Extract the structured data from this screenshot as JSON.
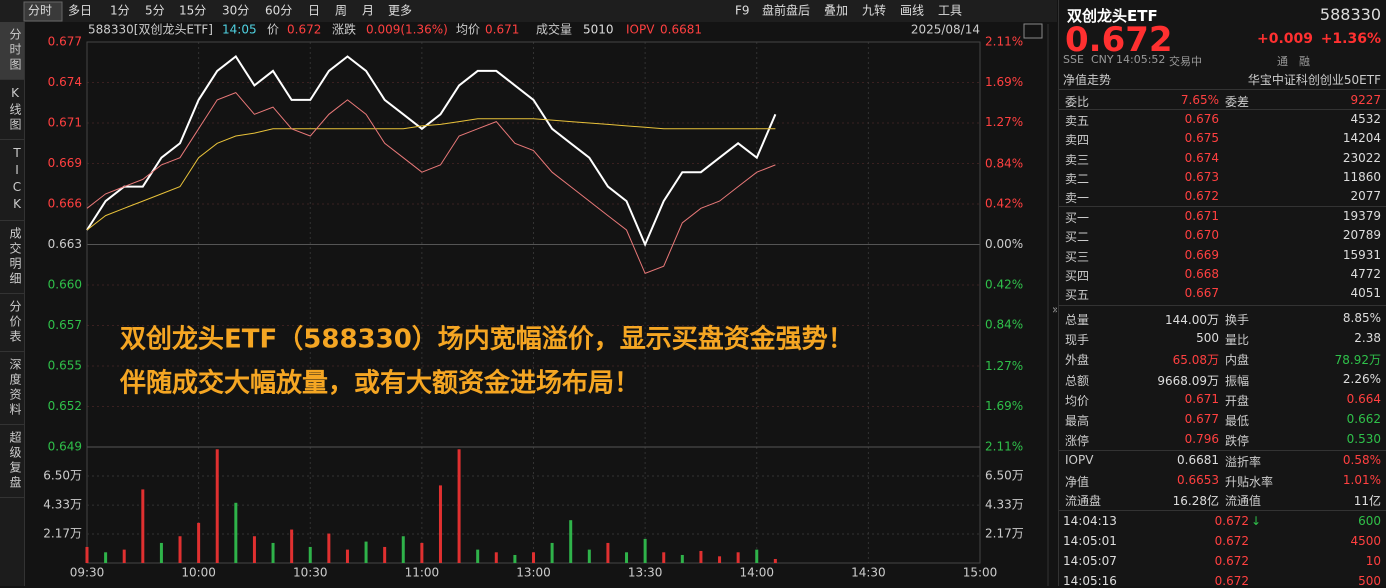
{
  "toolbar": {
    "tabs": [
      "分时",
      "多日",
      "1分",
      "5分",
      "15分",
      "30分",
      "60分",
      "日",
      "周",
      "月",
      "更多"
    ],
    "tools": [
      "F9",
      "盘前盘后",
      "叠加",
      "九转",
      "画线",
      "工具"
    ]
  },
  "side_tabs": [
    "分时图",
    "K线图",
    "TICK",
    "成交明细",
    "分价表",
    "深度资料",
    "超级复盘"
  ],
  "header": {
    "code_name": "588330[双创龙头ETF]",
    "time": "14:05",
    "price_label": "价",
    "price": "0.672",
    "change_label": "涨跌",
    "change": "0.009(1.36%)",
    "avg_label": "均价",
    "avg": "0.671",
    "volume_label": "成交量",
    "volume": "5010",
    "iopv_label": "IOPV",
    "iopv": "0.6681",
    "date": "2025/08/14"
  },
  "annotation": [
    "双创龙头ETF（588330）场内宽幅溢价，显示买盘资金强势！",
    "伴随成交大幅放量，或有大额资金进场布局！"
  ],
  "chart_data": [
    {
      "type": "line",
      "x": [
        "09:30",
        "09:35",
        "09:40",
        "09:45",
        "09:50",
        "09:55",
        "10:00",
        "10:05",
        "10:10",
        "10:15",
        "10:20",
        "10:25",
        "10:30",
        "10:35",
        "10:40",
        "10:45",
        "10:50",
        "10:55",
        "11:00",
        "11:05",
        "11:10",
        "11:15",
        "11:20",
        "11:25",
        "13:00",
        "13:05",
        "13:10",
        "13:15",
        "13:20",
        "13:25",
        "13:30",
        "13:35",
        "13:40",
        "13:45",
        "13:50",
        "13:55",
        "14:00",
        "14:05"
      ],
      "series": [
        {
          "color": "#ffffff",
          "values": [
            0.664,
            0.666,
            0.667,
            0.667,
            0.669,
            0.67,
            0.673,
            0.675,
            0.676,
            0.674,
            0.675,
            0.673,
            0.673,
            0.675,
            0.676,
            0.675,
            0.673,
            0.672,
            0.671,
            0.672,
            0.674,
            0.675,
            0.675,
            0.674,
            0.673,
            0.671,
            0.67,
            0.669,
            0.667,
            0.666,
            0.663,
            0.666,
            0.668,
            0.668,
            0.669,
            0.67,
            0.669,
            0.672
          ]
        },
        {
          "color": "#e8c23a",
          "values": [
            0.664,
            0.665,
            0.6655,
            0.666,
            0.6665,
            0.667,
            0.669,
            0.67,
            0.6705,
            0.6707,
            0.671,
            0.671,
            0.671,
            0.671,
            0.671,
            0.671,
            0.671,
            0.671,
            0.6712,
            0.6713,
            0.6715,
            0.6717,
            0.6717,
            0.6717,
            0.6717,
            0.6716,
            0.6715,
            0.6714,
            0.6713,
            0.6712,
            0.6711,
            0.671,
            0.671,
            0.671,
            0.671,
            0.671,
            0.671,
            0.671
          ]
        },
        {
          "color": "#e87878",
          "values": [
            0.6655,
            0.6665,
            0.667,
            0.6675,
            0.6685,
            0.669,
            0.671,
            0.673,
            0.6735,
            0.672,
            0.6725,
            0.671,
            0.6705,
            0.672,
            0.673,
            0.672,
            0.67,
            0.669,
            0.668,
            0.6685,
            0.6705,
            0.671,
            0.6715,
            0.67,
            0.6695,
            0.668,
            0.667,
            0.666,
            0.665,
            0.664,
            0.661,
            0.6615,
            0.6645,
            0.6655,
            0.666,
            0.667,
            0.668,
            0.6685
          ]
        }
      ],
      "ylim": [
        0.649,
        0.677
      ],
      "yticks": [
        0.677,
        {
          "value": 0.6742,
          "label": "0.674"
        },
        {
          "value": 0.6714,
          "label": "0.671"
        },
        {
          "value": 0.6686,
          "label": "0.669"
        },
        {
          "value": 0.6658,
          "label": "0.666"
        },
        0.663,
        {
          "value": 0.6602,
          "label": "0.660"
        },
        {
          "value": 0.6574,
          "label": "0.657"
        },
        {
          "value": 0.6546,
          "label": "0.655"
        },
        {
          "value": 0.6518,
          "label": "0.652"
        },
        0.649
      ],
      "y2lim": [
        -2.11,
        2.11
      ],
      "y2ticks": [
        {
          "value": 2.11,
          "label": "2.11%"
        },
        {
          "value": 1.69,
          "label": "1.69%"
        },
        {
          "value": 1.27,
          "label": "1.27%"
        },
        {
          "value": 0.84,
          "label": "0.84%"
        },
        {
          "value": 0.42,
          "label": "0.42%"
        },
        {
          "value": 0,
          "label": "0.00%"
        },
        {
          "value": -0.42,
          "label": "0.42%"
        },
        {
          "value": -0.84,
          "label": "0.84%"
        },
        {
          "value": -1.27,
          "label": "1.27%"
        },
        {
          "value": -1.69,
          "label": "1.69%"
        },
        {
          "value": -2.11,
          "label": "2.11%"
        }
      ],
      "xticks": [
        "09:30",
        "10:00",
        "10:30",
        "11:00",
        "13:00",
        "13:30",
        "14:00",
        "14:30",
        "15:00"
      ],
      "grid": true
    },
    {
      "type": "bar",
      "x": [
        "09:30",
        "09:35",
        "09:40",
        "09:45",
        "09:50",
        "09:55",
        "10:00",
        "10:05",
        "10:10",
        "10:15",
        "10:20",
        "10:25",
        "10:30",
        "10:35",
        "10:40",
        "10:45",
        "10:50",
        "10:55",
        "11:00",
        "11:05",
        "11:10",
        "11:15",
        "11:20",
        "11:25",
        "13:00",
        "13:05",
        "13:10",
        "13:15",
        "13:20",
        "13:25",
        "13:30",
        "13:35",
        "13:40",
        "13:45",
        "13:50",
        "13:55",
        "14:00",
        "14:05"
      ],
      "values": [
        1.2,
        0.8,
        1.0,
        5.5,
        1.5,
        2.0,
        3.0,
        8.5,
        4.5,
        2.0,
        1.5,
        2.5,
        1.2,
        2.2,
        1.0,
        1.6,
        1.2,
        2.0,
        1.5,
        5.8,
        8.5,
        1.0,
        0.8,
        0.6,
        0.8,
        1.5,
        3.2,
        1.0,
        1.5,
        0.8,
        1.8,
        0.8,
        0.6,
        0.9,
        0.5,
        0.8,
        1.0,
        0.3
      ],
      "colors": [
        "#e03030",
        "#2fb34a",
        "#e03030",
        "#e03030",
        "#2fb34a",
        "#e03030",
        "#e03030",
        "#e03030",
        "#2fb34a",
        "#e03030",
        "#2fb34a",
        "#e03030",
        "#2fb34a",
        "#e03030",
        "#e03030",
        "#2fb34a",
        "#e03030",
        "#2fb34a",
        "#e03030",
        "#e03030",
        "#e03030",
        "#2fb34a",
        "#e03030",
        "#2fb34a",
        "#e03030",
        "#2fb34a",
        "#2fb34a",
        "#2fb34a",
        "#e03030",
        "#2fb34a",
        "#2fb34a",
        "#e03030",
        "#2fb34a",
        "#e03030",
        "#e03030",
        "#e03030",
        "#2fb34a",
        "#e03030"
      ],
      "ylim": [
        0,
        8.67
      ],
      "yticks": [
        {
          "value": 6.5,
          "label": "6.50万"
        },
        {
          "value": 4.33,
          "label": "4.33万"
        },
        {
          "value": 2.17,
          "label": "2.17万"
        }
      ]
    }
  ],
  "quote": {
    "name": "双创龙头ETF",
    "code": "588330",
    "price": "0.672",
    "change": "+0.009",
    "pct": "+1.36%",
    "info": [
      "SSE",
      "CNY",
      "14:05:52",
      "交易中"
    ],
    "flags": [
      "通",
      "融"
    ],
    "nav_link": "净值走势",
    "fund": "华宝中证科创创业50ETF",
    "ratio": [
      "委比",
      "7.65%",
      "委差",
      "9227"
    ],
    "sells": [
      [
        "卖五",
        "0.676",
        "4532"
      ],
      [
        "卖四",
        "0.675",
        "14204"
      ],
      [
        "卖三",
        "0.674",
        "23022"
      ],
      [
        "卖二",
        "0.673",
        "11860"
      ],
      [
        "卖一",
        "0.672",
        "2077"
      ]
    ],
    "buys": [
      [
        "买一",
        "0.671",
        "19379"
      ],
      [
        "买二",
        "0.670",
        "20789"
      ],
      [
        "买三",
        "0.669",
        "15931"
      ],
      [
        "买四",
        "0.668",
        "4772"
      ],
      [
        "买五",
        "0.667",
        "4051"
      ]
    ],
    "stats": [
      {
        "cells": [
          "总量",
          "144.00万",
          "换手",
          "8.85%"
        ],
        "colors": [
          "#ddd",
          "#ddd"
        ]
      },
      {
        "cells": [
          "现手",
          "500",
          "量比",
          "2.38"
        ],
        "colors": [
          "#ddd",
          "#ddd"
        ]
      },
      {
        "cells": [
          "外盘",
          "65.08万",
          "内盘",
          "78.92万"
        ],
        "colors": [
          "#ff4040",
          "#2fc04a"
        ]
      },
      {
        "cells": [
          "总额",
          "9668.09万",
          "振幅",
          "2.26%"
        ],
        "colors": [
          "#ddd",
          "#ddd"
        ]
      },
      {
        "cells": [
          "均价",
          "0.671",
          "开盘",
          "0.664"
        ],
        "colors": [
          "#ff4040",
          "#ff4040"
        ]
      },
      {
        "cells": [
          "最高",
          "0.677",
          "最低",
          "0.662"
        ],
        "colors": [
          "#ff4040",
          "#2fc04a"
        ]
      },
      {
        "cells": [
          "涨停",
          "0.796",
          "跌停",
          "0.530"
        ],
        "colors": [
          "#ff4040",
          "#2fc04a"
        ]
      }
    ],
    "fund_stats": [
      {
        "cells": [
          "IOPV",
          "0.6681",
          "溢折率",
          "0.58%"
        ],
        "colors": [
          "#ddd",
          "#ff4040"
        ]
      },
      {
        "cells": [
          "净值",
          "0.6653",
          "升贴水率",
          "1.01%"
        ],
        "colors": [
          "#ff4040",
          "#ff4040"
        ]
      },
      {
        "cells": [
          "流通盘",
          "16.28亿",
          "流通值",
          "11亿"
        ],
        "colors": [
          "#ddd",
          "#ddd"
        ]
      }
    ],
    "trades": [
      {
        "time": "14:04:13",
        "price": "0.672",
        "arrow": "↓",
        "volume": "600"
      },
      {
        "time": "14:05:01",
        "price": "0.672",
        "volume": "4500"
      },
      {
        "time": "14:05:07",
        "price": "0.672",
        "volume": "10"
      },
      {
        "time": "14:05:16",
        "price": "0.672",
        "volume": "500"
      }
    ]
  }
}
